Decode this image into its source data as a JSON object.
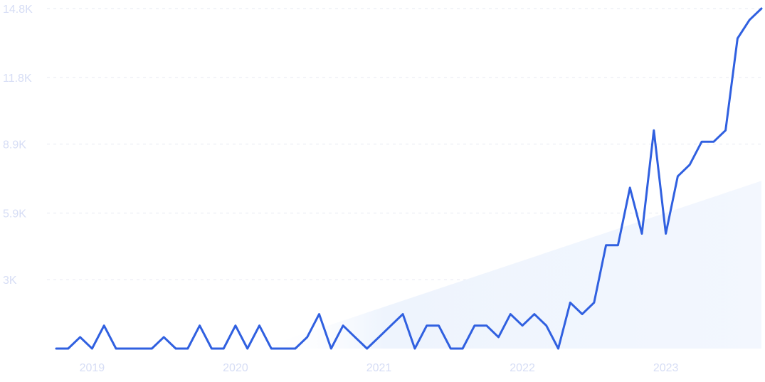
{
  "chart_data": {
    "type": "line",
    "title": "",
    "xlabel": "",
    "ylabel": "",
    "grid": true,
    "legend": "none",
    "colors": {
      "line": "#3060e0",
      "trend_fill": "#e9f1fd",
      "tick_text": "#d6ddf5",
      "grid": "#e6e9f2"
    },
    "ylim": [
      0,
      14800
    ],
    "y_ticks": [
      {
        "value": 3000,
        "label": "3K"
      },
      {
        "value": 5900,
        "label": "5.9K"
      },
      {
        "value": 8900,
        "label": "8.9K"
      },
      {
        "value": 11800,
        "label": "11.8K"
      },
      {
        "value": 14800,
        "label": "14.8K"
      }
    ],
    "x_ticks": [
      {
        "value": "2019-01",
        "label": "2019"
      },
      {
        "value": "2020-01",
        "label": "2020"
      },
      {
        "value": "2021-01",
        "label": "2021"
      },
      {
        "value": "2022-01",
        "label": "2022"
      },
      {
        "value": "2023-01",
        "label": "2023"
      }
    ],
    "x": [
      "2018-10",
      "2018-11",
      "2018-12",
      "2019-01",
      "2019-02",
      "2019-03",
      "2019-04",
      "2019-05",
      "2019-06",
      "2019-07",
      "2019-08",
      "2019-09",
      "2019-10",
      "2019-11",
      "2019-12",
      "2020-01",
      "2020-02",
      "2020-03",
      "2020-04",
      "2020-05",
      "2020-06",
      "2020-07",
      "2020-08",
      "2020-09",
      "2020-10",
      "2020-11",
      "2020-12",
      "2021-01",
      "2021-02",
      "2021-03",
      "2021-04",
      "2021-05",
      "2021-06",
      "2021-07",
      "2021-08",
      "2021-09",
      "2021-10",
      "2021-11",
      "2021-12",
      "2022-01",
      "2022-02",
      "2022-03",
      "2022-04",
      "2022-05",
      "2022-06",
      "2022-07",
      "2022-08",
      "2022-09",
      "2022-10",
      "2022-11",
      "2022-12",
      "2023-01",
      "2023-02",
      "2023-03",
      "2023-04",
      "2023-05",
      "2023-06",
      "2023-07",
      "2023-08",
      "2023-09"
    ],
    "series": [
      {
        "name": "",
        "values": [
          0,
          0,
          500,
          0,
          1000,
          0,
          0,
          0,
          0,
          500,
          0,
          0,
          1000,
          0,
          0,
          1000,
          0,
          1000,
          0,
          0,
          0,
          500,
          1500,
          0,
          1000,
          500,
          0,
          500,
          1000,
          1500,
          0,
          1000,
          1000,
          0,
          0,
          1000,
          1000,
          500,
          1500,
          1000,
          1500,
          1000,
          0,
          2000,
          1500,
          2000,
          4500,
          4500,
          7000,
          5000,
          9500,
          5000,
          7500,
          8000,
          9000,
          9000,
          9500,
          13500,
          14300,
          14800
        ]
      }
    ],
    "trend": {
      "type": "area",
      "start": {
        "x": "2020-03",
        "y": 0
      },
      "end": {
        "x": "2023-09",
        "y": 7300
      }
    }
  }
}
